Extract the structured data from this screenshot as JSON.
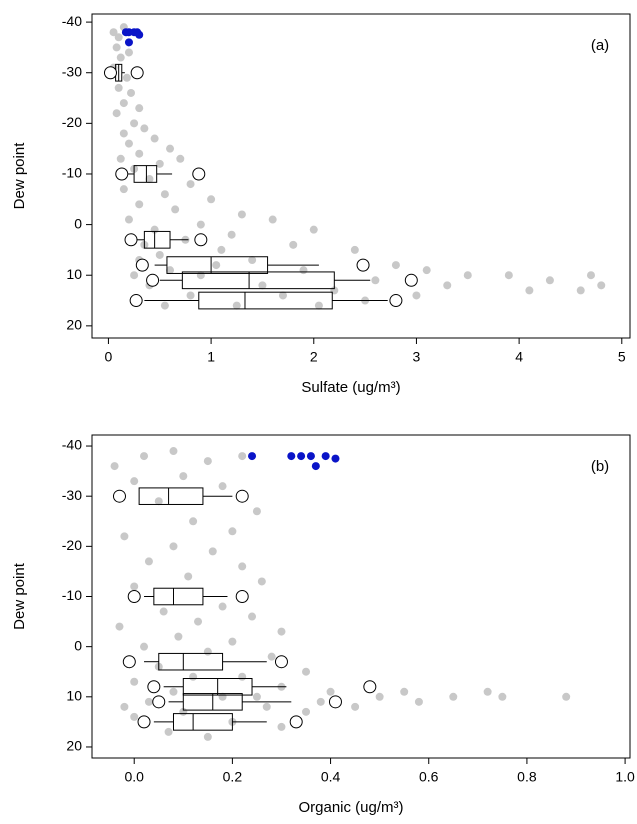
{
  "chart_data": [
    {
      "type": "scatter_box",
      "annotation": "(a)",
      "xlabel": "Sulfate (ug/m³)",
      "ylabel": "Dew point",
      "xlim": [
        -0.16,
        5.08
      ],
      "ylim": [
        22.4,
        -41.6
      ],
      "xticks": [
        0,
        1,
        2,
        3,
        4,
        5
      ],
      "yticks": [
        -40,
        -30,
        -20,
        -10,
        0,
        10,
        20
      ],
      "series": [
        {
          "color": "#c8c8c8",
          "x": [
            0.05,
            0.1,
            0.15,
            0.08,
            0.12,
            0.2,
            0.05,
            0.18,
            0.1,
            0.22,
            0.15,
            0.3,
            0.08,
            0.25,
            0.35,
            0.15,
            0.45,
            0.2,
            0.6,
            0.3,
            0.12,
            0.5,
            0.7,
            0.25,
            0.4,
            0.8,
            0.15,
            0.55,
            1.0,
            0.3,
            0.65,
            1.3,
            0.2,
            0.9,
            1.6,
            0.45,
            1.2,
            0.75,
            2.0,
            0.35,
            1.1,
            1.8,
            0.5,
            2.4,
            0.3,
            1.4,
            2.8,
            0.6,
            3.1,
            1.9,
            3.5,
            0.9,
            3.9,
            2.6,
            4.3,
            4.7,
            0.4,
            1.5,
            3.3,
            4.1,
            4.6,
            2.2,
            0.8,
            1.7,
            3.0,
            4.8,
            0.55,
            1.25,
            2.05,
            2.5,
            0.25,
            1.05
          ],
          "y": [
            -38,
            -37,
            -39,
            -35,
            -33,
            -34,
            -31,
            -29,
            -27,
            -26,
            -24,
            -23,
            -22,
            -20,
            -19,
            -18,
            -17,
            -16,
            -15,
            -14,
            -13,
            -12,
            -13,
            -11,
            -9,
            -8,
            -7,
            -6,
            -5,
            -4,
            -3,
            -2,
            -1,
            0,
            -1,
            1,
            2,
            3,
            1,
            4,
            5,
            4,
            6,
            5,
            7,
            7,
            8,
            9,
            9,
            9,
            10,
            10,
            10,
            11,
            11,
            10,
            12,
            12,
            12,
            13,
            13,
            13,
            14,
            14,
            14,
            12,
            16,
            16,
            16,
            15,
            10,
            8
          ]
        },
        {
          "color": "#0a14c8",
          "x": [
            0.17,
            0.2,
            0.25,
            0.28,
            0.3,
            0.2
          ],
          "y": [
            -38,
            -38,
            -38,
            -38,
            -37.5,
            -36
          ]
        }
      ],
      "box_color": "#000000",
      "flier_fill": "#ffffff",
      "boxes": [
        {
          "y": -30,
          "whislo": 0.05,
          "q1": 0.07,
          "med": 0.1,
          "q3": 0.13,
          "whishi": 0.16,
          "fliers": [
            0.02,
            0.28
          ]
        },
        {
          "y": -10,
          "whislo": 0.18,
          "q1": 0.25,
          "med": 0.37,
          "q3": 0.47,
          "whishi": 0.62,
          "fliers": [
            0.13,
            0.88
          ]
        },
        {
          "y": 3,
          "whislo": 0.27,
          "q1": 0.35,
          "med": 0.45,
          "q3": 0.6,
          "whishi": 0.78,
          "fliers": [
            0.22,
            0.9
          ]
        },
        {
          "y": 8,
          "whislo": 0.45,
          "q1": 0.57,
          "med": 1.0,
          "q3": 1.55,
          "whishi": 2.05,
          "fliers": [
            0.33,
            2.48
          ]
        },
        {
          "y": 11,
          "whislo": 0.5,
          "q1": 0.72,
          "med": 1.37,
          "q3": 2.2,
          "whishi": 2.55,
          "fliers": [
            0.43,
            2.95
          ]
        },
        {
          "y": 15,
          "whislo": 0.35,
          "q1": 0.88,
          "med": 1.33,
          "q3": 2.18,
          "whishi": 2.72,
          "fliers": [
            0.27,
            2.8
          ]
        }
      ]
    },
    {
      "type": "scatter_box",
      "annotation": "(b)",
      "xlabel": "Organic (ug/m³)",
      "ylabel": "Dew point",
      "xlim": [
        -0.086,
        1.01
      ],
      "ylim": [
        22.2,
        -42.2
      ],
      "xticks": [
        {
          "value": 0,
          "label": "0.0"
        },
        {
          "value": 0.2,
          "label": "0.2"
        },
        {
          "value": 0.4,
          "label": "0.4"
        },
        {
          "value": 0.6,
          "label": "0.6"
        },
        {
          "value": 0.8,
          "label": "0.8"
        },
        {
          "value": 1,
          "label": "1.0"
        }
      ],
      "yticks": [
        -40,
        -30,
        -20,
        -10,
        0,
        10,
        20
      ],
      "series": [
        {
          "color": "#c8c8c8",
          "x": [
            -0.04,
            0.02,
            0.08,
            0.15,
            0.22,
            0.0,
            0.1,
            0.18,
            0.05,
            0.25,
            0.12,
            -0.02,
            0.2,
            0.08,
            0.16,
            0.03,
            0.22,
            0.11,
            0.26,
            0.0,
            0.18,
            0.06,
            0.24,
            0.13,
            -0.03,
            0.3,
            0.09,
            0.2,
            0.02,
            0.15,
            0.28,
            0.05,
            0.35,
            0.12,
            0.22,
            0.0,
            0.3,
            0.08,
            0.4,
            0.18,
            0.5,
            0.58,
            0.65,
            0.72,
            0.75,
            0.88,
            0.03,
            0.27,
            0.45,
            0.1,
            0.35,
            0.0,
            0.2,
            0.3,
            0.07,
            0.15,
            0.25,
            0.55,
            -0.02,
            0.38
          ],
          "y": [
            -36,
            -38,
            -39,
            -37,
            -38,
            -33,
            -34,
            -32,
            -29,
            -27,
            -25,
            -22,
            -23,
            -20,
            -19,
            -17,
            -16,
            -14,
            -13,
            -12,
            -8,
            -7,
            -6,
            -5,
            -4,
            -3,
            -2,
            -1,
            0,
            1,
            2,
            4,
            5,
            6,
            6,
            7,
            8,
            9,
            9,
            10,
            10,
            11,
            10,
            9,
            10,
            10,
            11,
            12,
            12,
            13,
            13,
            14,
            15,
            16,
            17,
            18,
            10,
            9,
            12,
            11
          ]
        },
        {
          "color": "#0a14c8",
          "x": [
            0.24,
            0.32,
            0.34,
            0.36,
            0.39,
            0.41,
            0.37
          ],
          "y": [
            -38,
            -38,
            -38,
            -38,
            -38,
            -37.5,
            -36
          ]
        }
      ],
      "box_color": "#000000",
      "flier_fill": "#ffffff",
      "boxes": [
        {
          "y": -30,
          "whislo": 0.01,
          "q1": 0.01,
          "med": 0.07,
          "q3": 0.14,
          "whishi": 0.2,
          "fliers": [
            -0.03,
            0.22
          ]
        },
        {
          "y": -10,
          "whislo": 0.02,
          "q1": 0.04,
          "med": 0.08,
          "q3": 0.14,
          "whishi": 0.19,
          "fliers": [
            0.0,
            0.22
          ]
        },
        {
          "y": 3,
          "whislo": 0.02,
          "q1": 0.05,
          "med": 0.1,
          "q3": 0.18,
          "whishi": 0.27,
          "fliers": [
            -0.01,
            0.3
          ]
        },
        {
          "y": 8,
          "whislo": 0.06,
          "q1": 0.1,
          "med": 0.17,
          "q3": 0.24,
          "whishi": 0.31,
          "fliers": [
            0.04,
            0.48
          ]
        },
        {
          "y": 11,
          "whislo": 0.07,
          "q1": 0.1,
          "med": 0.16,
          "q3": 0.22,
          "whishi": 0.32,
          "fliers": [
            0.05,
            0.41
          ]
        },
        {
          "y": 15,
          "whislo": 0.04,
          "q1": 0.08,
          "med": 0.12,
          "q3": 0.2,
          "whishi": 0.27,
          "fliers": [
            0.02,
            0.33
          ]
        }
      ]
    }
  ]
}
